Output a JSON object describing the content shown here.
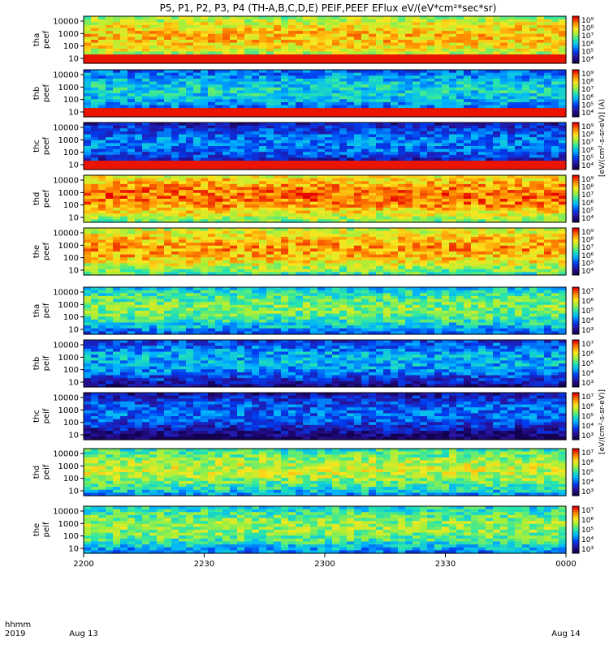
{
  "chart_data": {
    "type": "heatmap",
    "title": "P5, P1, P2, P3, P4 (TH-A,B,C,D,E) PEIF,PEEF EFlux eV/(eV*cm²*sec*sr)",
    "x_ticks": [
      "2200",
      "2230",
      "2300",
      "2330",
      "0000"
    ],
    "x_date_left": "Aug 13",
    "x_date_right": "Aug 14",
    "x_label_top": "hhmm",
    "x_label_bottom": "2019",
    "y_ticks": [
      "10000",
      "1000",
      "100",
      "10"
    ],
    "y_scale": "log",
    "electron_colorbar_ticks": [
      "10⁹",
      "10⁸",
      "10⁷",
      "10⁶",
      "10⁵",
      "10⁴"
    ],
    "ion_colorbar_ticks": [
      "10⁷",
      "10⁶",
      "10⁵",
      "10⁴",
      "10³"
    ],
    "electron_colorbar_label": "[eV/(cm²-s-sr-eV)] (A)",
    "ion_colorbar_label": "[eV/(cm²-s-sr-eV)]",
    "panels": [
      {
        "probe": "tha",
        "species": "peef",
        "label_probe": "tha",
        "label_species": "peef",
        "level": 0.62,
        "low_band": "red"
      },
      {
        "probe": "thb",
        "species": "peef",
        "label_probe": "thb",
        "label_species": "peef",
        "level": 0.28,
        "low_band": "red"
      },
      {
        "probe": "thc",
        "species": "peef",
        "label_probe": "thc",
        "label_species": "peef",
        "level": 0.15,
        "low_band": "red"
      },
      {
        "probe": "thd",
        "species": "peef",
        "label_probe": "thd",
        "label_species": "peef",
        "level": 0.72,
        "low_band": "none"
      },
      {
        "probe": "the",
        "species": "peef",
        "label_probe": "the",
        "label_species": "peef",
        "level": 0.66,
        "low_band": "none"
      },
      {
        "probe": "tha",
        "species": "peif",
        "label_probe": "tha",
        "label_species": "peif",
        "level": 0.42,
        "low_band": "none"
      },
      {
        "probe": "thb",
        "species": "peif",
        "label_probe": "thb",
        "label_species": "peif",
        "level": 0.22,
        "low_band": "none"
      },
      {
        "probe": "thc",
        "species": "peif",
        "label_probe": "thc",
        "label_species": "peif",
        "level": 0.12,
        "low_band": "none"
      },
      {
        "probe": "thd",
        "species": "peif",
        "label_probe": "thd",
        "label_species": "peif",
        "level": 0.5,
        "low_band": "none"
      },
      {
        "probe": "the",
        "species": "peif",
        "label_probe": "the",
        "label_species": "peif",
        "level": 0.45,
        "low_band": "none"
      }
    ]
  }
}
